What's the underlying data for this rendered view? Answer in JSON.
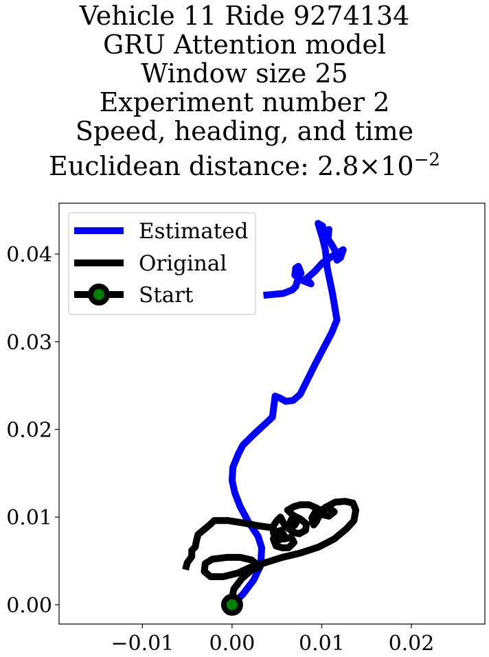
{
  "title_lines": [
    "Vehicle 11 Ride 9274134",
    "GRU Attention model",
    "Window size 25",
    "Experiment number 2",
    "Speed, heading, and time"
  ],
  "title_distance": {
    "prefix": "Euclidean distance: ",
    "mantissa": "2.8",
    "times": "×",
    "base": "10",
    "exponent": "−2"
  },
  "chart_data": {
    "type": "line",
    "xlim": [
      -0.0193,
      0.0282
    ],
    "ylim": [
      -0.0022,
      0.0458
    ],
    "x_ticks": [
      -0.01,
      0.0,
      0.01,
      0.02
    ],
    "x_tick_labels": [
      "−0.01",
      "0.00",
      "0.01",
      "0.02"
    ],
    "y_ticks": [
      0.0,
      0.01,
      0.02,
      0.03,
      0.04
    ],
    "y_tick_labels": [
      "0.00",
      "0.01",
      "0.02",
      "0.03",
      "0.04"
    ],
    "grid": false,
    "legend_position": "upper-left",
    "legend": [
      "Estimated",
      "Original",
      "Start"
    ],
    "series": [
      {
        "name": "Estimated",
        "color": "#0000ff",
        "points": [
          [
            0.0,
            0.0
          ],
          [
            0.0012,
            0.0012
          ],
          [
            0.0024,
            0.0028
          ],
          [
            0.0032,
            0.0045
          ],
          [
            0.0033,
            0.0065
          ],
          [
            0.0029,
            0.0078
          ],
          [
            0.0018,
            0.0095
          ],
          [
            0.0009,
            0.0112
          ],
          [
            0.0003,
            0.0128
          ],
          [
            0.0,
            0.0142
          ],
          [
            0.0001,
            0.0157
          ],
          [
            0.0007,
            0.0172
          ],
          [
            0.0012,
            0.0182
          ],
          [
            0.0024,
            0.0194
          ],
          [
            0.0045,
            0.0214
          ],
          [
            0.0047,
            0.023
          ],
          [
            0.0048,
            0.0238
          ],
          [
            0.0053,
            0.0236
          ],
          [
            0.006,
            0.0232
          ],
          [
            0.0068,
            0.0233
          ],
          [
            0.0076,
            0.024
          ],
          [
            0.0093,
            0.0275
          ],
          [
            0.0111,
            0.031
          ],
          [
            0.0117,
            0.0325
          ],
          [
            0.0112,
            0.0355
          ],
          [
            0.0106,
            0.0385
          ],
          [
            0.0104,
            0.0405
          ],
          [
            0.0101,
            0.0418
          ],
          [
            0.0098,
            0.0428
          ],
          [
            0.0096,
            0.0435
          ],
          [
            0.0101,
            0.0432
          ],
          [
            0.0104,
            0.0422
          ],
          [
            0.0108,
            0.0428
          ],
          [
            0.0107,
            0.0417
          ],
          [
            0.0111,
            0.0411
          ],
          [
            0.0116,
            0.0402
          ],
          [
            0.0117,
            0.0393
          ],
          [
            0.0121,
            0.0396
          ],
          [
            0.0124,
            0.0405
          ],
          [
            0.0114,
            0.0399
          ],
          [
            0.0101,
            0.039
          ],
          [
            0.0092,
            0.038
          ],
          [
            0.0083,
            0.0372
          ],
          [
            0.0088,
            0.0366
          ],
          [
            0.0078,
            0.037
          ],
          [
            0.007,
            0.0376
          ],
          [
            0.0071,
            0.0384
          ],
          [
            0.0074,
            0.0386
          ],
          [
            0.0077,
            0.0378
          ],
          [
            0.0073,
            0.037
          ],
          [
            0.0071,
            0.0363
          ],
          [
            0.0067,
            0.0359
          ],
          [
            0.0057,
            0.0355
          ],
          [
            0.0046,
            0.0354
          ],
          [
            0.0035,
            0.0353
          ]
        ]
      },
      {
        "name": "Original",
        "color": "#000000",
        "points": [
          [
            0.0,
            0.0
          ],
          [
            0.0,
            0.0008
          ],
          [
            0.0002,
            0.0018
          ],
          [
            0.0011,
            0.003
          ],
          [
            0.0021,
            0.0039
          ],
          [
            0.0031,
            0.0043
          ],
          [
            0.0022,
            0.0051
          ],
          [
            0.0009,
            0.0054
          ],
          [
            -0.0006,
            0.0054
          ],
          [
            -0.0022,
            0.0052
          ],
          [
            -0.003,
            0.0047
          ],
          [
            -0.0031,
            0.0038
          ],
          [
            -0.0024,
            0.0032
          ],
          [
            -0.001,
            0.0032
          ],
          [
            0.0006,
            0.0036
          ],
          [
            0.0021,
            0.0043
          ],
          [
            0.0037,
            0.0048
          ],
          [
            0.0056,
            0.0054
          ],
          [
            0.0076,
            0.0059
          ],
          [
            0.0097,
            0.0066
          ],
          [
            0.0114,
            0.0075
          ],
          [
            0.0128,
            0.0087
          ],
          [
            0.0136,
            0.0096
          ],
          [
            0.0138,
            0.0108
          ],
          [
            0.0135,
            0.0116
          ],
          [
            0.0126,
            0.0118
          ],
          [
            0.0115,
            0.0117
          ],
          [
            0.0104,
            0.0111
          ],
          [
            0.0098,
            0.0103
          ],
          [
            0.0094,
            0.0095
          ],
          [
            0.0091,
            0.0091
          ],
          [
            0.0089,
            0.0099
          ],
          [
            0.0093,
            0.0106
          ],
          [
            0.0101,
            0.0109
          ],
          [
            0.0109,
            0.011
          ],
          [
            0.0114,
            0.0106
          ],
          [
            0.0108,
            0.0101
          ],
          [
            0.01,
            0.0103
          ],
          [
            0.0095,
            0.011
          ],
          [
            0.0086,
            0.0114
          ],
          [
            0.0076,
            0.0114
          ],
          [
            0.0069,
            0.0112
          ],
          [
            0.0062,
            0.0108
          ],
          [
            0.0068,
            0.0102
          ],
          [
            0.0076,
            0.0098
          ],
          [
            0.0083,
            0.0092
          ],
          [
            0.0082,
            0.0085
          ],
          [
            0.0075,
            0.0081
          ],
          [
            0.0067,
            0.0083
          ],
          [
            0.0063,
            0.009
          ],
          [
            0.0066,
            0.0097
          ],
          [
            0.0074,
            0.0098
          ],
          [
            0.007,
            0.0091
          ],
          [
            0.0064,
            0.0086
          ],
          [
            0.0058,
            0.0092
          ],
          [
            0.0054,
            0.01
          ],
          [
            0.005,
            0.0096
          ],
          [
            0.0046,
            0.009
          ],
          [
            0.0046,
            0.0082
          ],
          [
            0.0051,
            0.0076
          ],
          [
            0.0058,
            0.0075
          ],
          [
            0.0066,
            0.0077
          ],
          [
            0.0069,
            0.0071
          ],
          [
            0.0063,
            0.0065
          ],
          [
            0.0056,
            0.0065
          ],
          [
            0.0049,
            0.0067
          ],
          [
            0.0046,
            0.0075
          ],
          [
            0.0049,
            0.0083
          ],
          [
            0.0055,
            0.0085
          ],
          [
            0.0058,
            0.0079
          ],
          [
            0.0053,
            0.0074
          ],
          [
            0.0047,
            0.0077
          ],
          [
            0.0049,
            0.0083
          ],
          [
            0.0044,
            0.0088
          ],
          [
            0.003,
            0.009
          ],
          [
            0.0014,
            0.0093
          ],
          [
            -0.0004,
            0.0096
          ],
          [
            -0.002,
            0.0096
          ],
          [
            -0.0024,
            0.0092
          ],
          [
            -0.0031,
            0.0086
          ],
          [
            -0.0038,
            0.008
          ],
          [
            -0.004,
            0.0072
          ],
          [
            -0.0041,
            0.0066
          ],
          [
            -0.0045,
            0.0062
          ],
          [
            -0.0045,
            0.0055
          ],
          [
            -0.005,
            0.0048
          ],
          [
            -0.0052,
            0.004
          ]
        ]
      }
    ],
    "start_marker": {
      "name": "Start",
      "x": 0.0,
      "y": 0.0,
      "edge_color": "#000000",
      "face_color": "#008000"
    }
  }
}
